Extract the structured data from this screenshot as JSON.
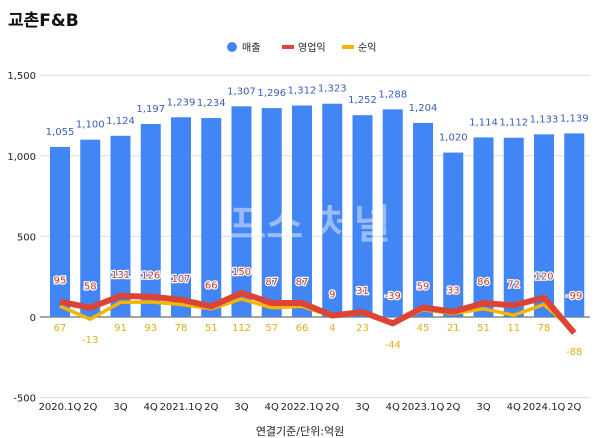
{
  "title": "교촌F&B",
  "footer": "연결기준/단위:억원",
  "watermark": "프스 처널",
  "chart_data": {
    "type": "bar",
    "categories": [
      "2020.1Q",
      "2Q",
      "3Q",
      "4Q",
      "2021.1Q",
      "2Q",
      "3Q",
      "4Q",
      "2022.1Q",
      "2Q",
      "3Q",
      "4Q",
      "2023.1Q",
      "2Q",
      "3Q",
      "4Q",
      "2024.1Q",
      "2Q"
    ],
    "series": [
      {
        "name": "매출",
        "type": "bar",
        "color": "#4285f4",
        "values": [
          1055,
          1100,
          1124,
          1197,
          1239,
          1234,
          1307,
          1296,
          1312,
          1323,
          1252,
          1288,
          1204,
          1020,
          1114,
          1112,
          1133,
          1139
        ]
      },
      {
        "name": "영업익",
        "type": "line",
        "color": "#db4437",
        "values": [
          95,
          58,
          131,
          126,
          107,
          66,
          150,
          87,
          87,
          9,
          31,
          -39,
          59,
          33,
          86,
          72,
          120,
          -99
        ]
      },
      {
        "name": "순익",
        "type": "line",
        "color": "#f4b400",
        "values": [
          67,
          -13,
          91,
          93,
          78,
          51,
          112,
          57,
          66,
          4,
          23,
          -44,
          45,
          21,
          51,
          11,
          78,
          -88
        ]
      }
    ],
    "yticks": [
      "1,500",
      "1,000",
      "500",
      "0",
      "-500"
    ],
    "ytick_values": [
      1500,
      1000,
      500,
      0,
      -500
    ],
    "ylim": [
      -500,
      1500
    ],
    "legend": "top-center"
  }
}
